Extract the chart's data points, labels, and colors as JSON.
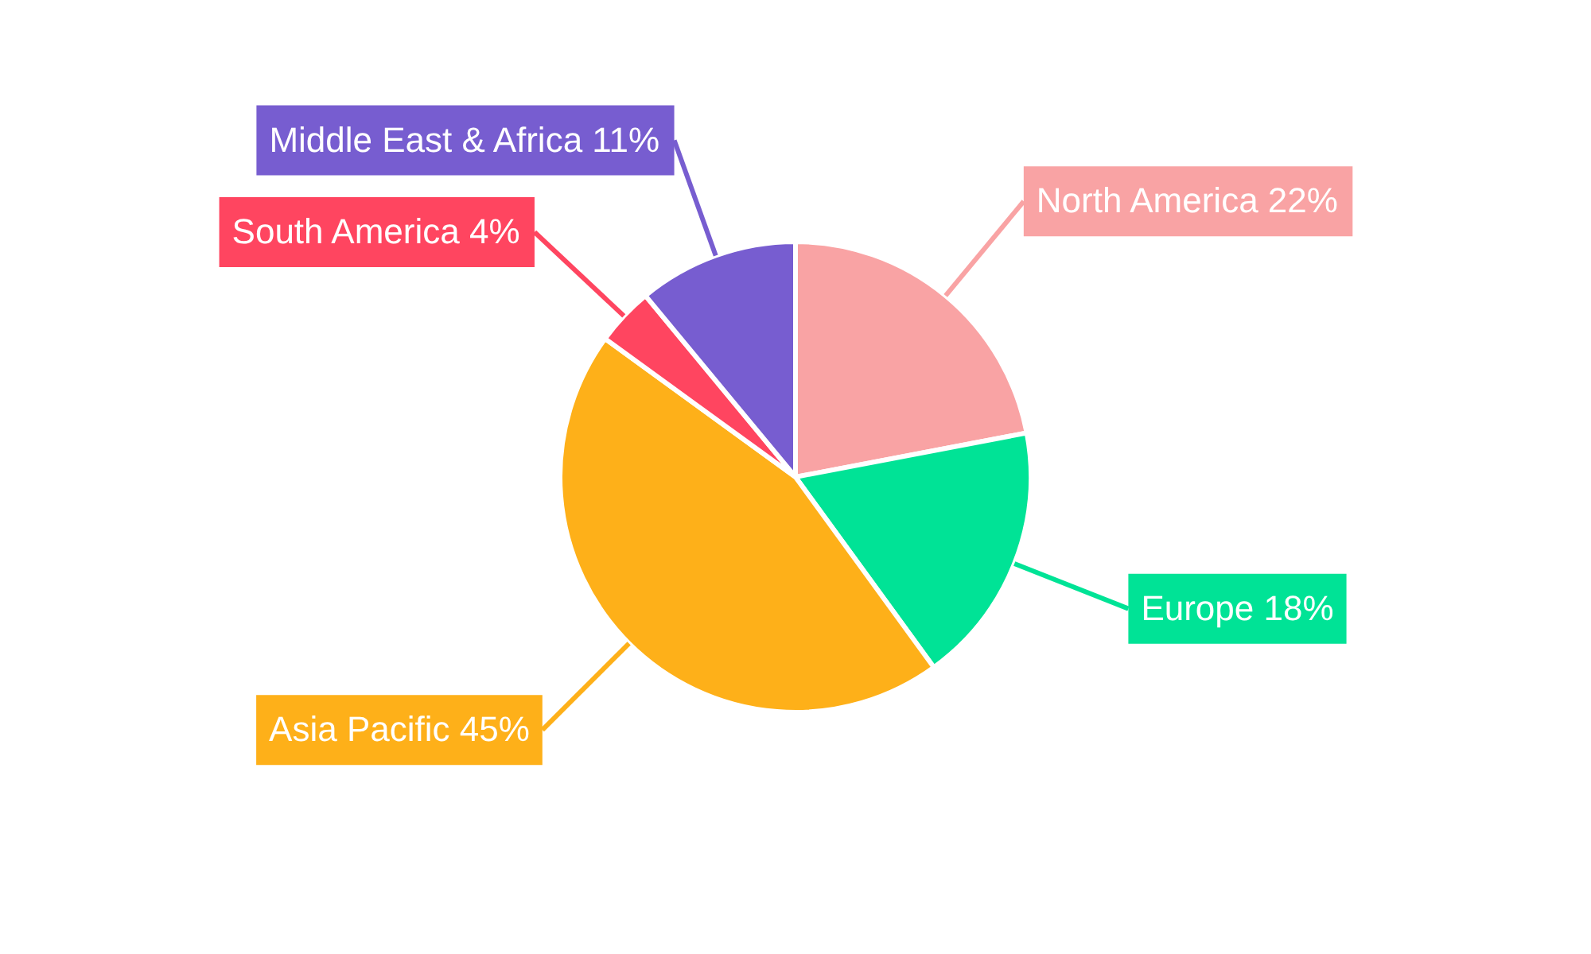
{
  "chart_data": {
    "type": "pie",
    "categories": [
      "North America",
      "Europe",
      "Asia Pacific",
      "South America",
      "Middle East & Africa"
    ],
    "values": [
      22,
      18,
      45,
      4,
      11
    ],
    "value_labels": [
      "22%",
      "18%",
      "45%",
      "4%",
      "11%"
    ],
    "colors": [
      "#f9a3a4",
      "#00e396",
      "#feb019",
      "#ff4560",
      "#775dd0"
    ]
  }
}
